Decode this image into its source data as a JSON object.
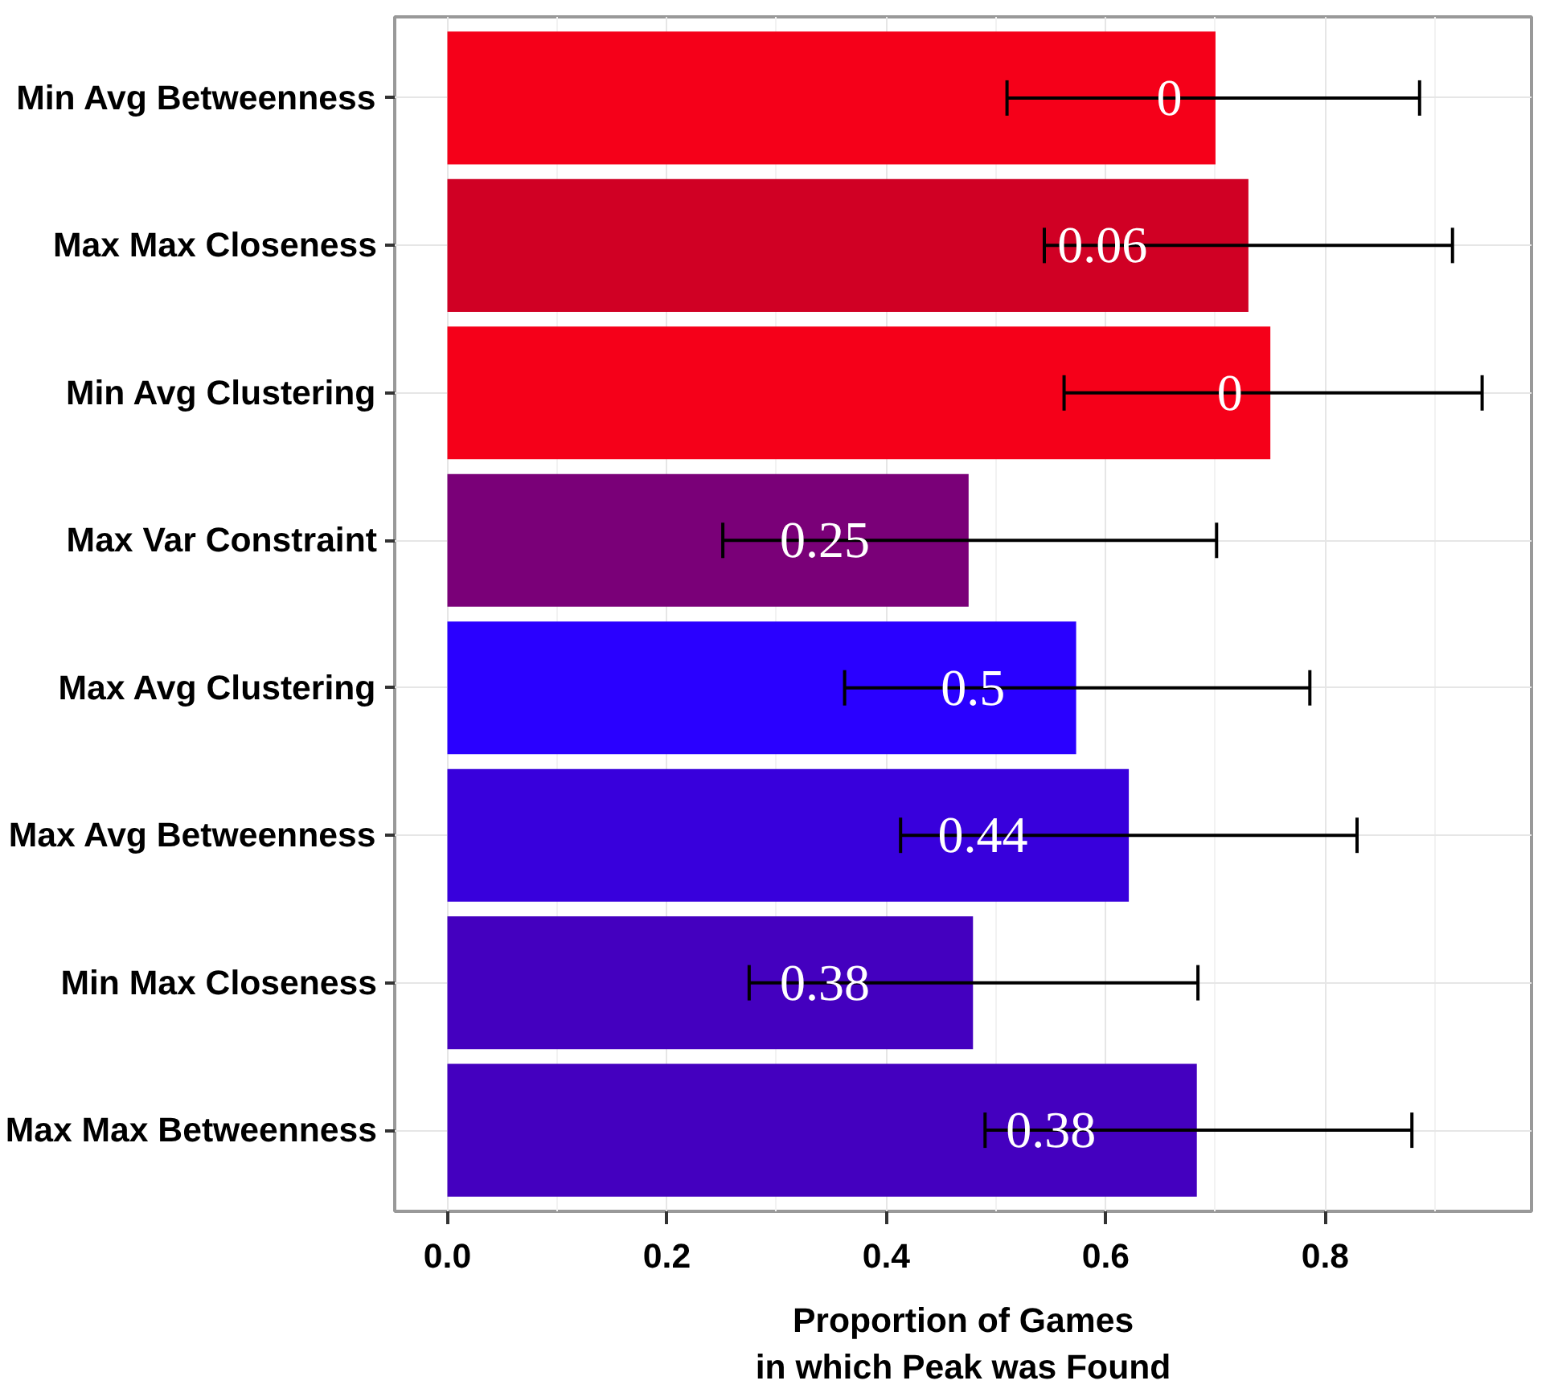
{
  "chart_data": {
    "type": "bar",
    "orientation": "horizontal",
    "xlabel": "Proportion of Games\nin which Peak was Found",
    "categories": [
      "Min Avg Betweenness",
      "Max Max Closeness",
      "Min Avg Clustering",
      "Max Var Constraint",
      "Max Avg Clustering",
      "Max Avg Betweenness",
      "Min Max Closeness",
      "Max Max Betweenness"
    ],
    "values": [
      0.7,
      0.73,
      0.75,
      0.475,
      0.573,
      0.621,
      0.479,
      0.683
    ],
    "colors": [
      "#f50019",
      "#d00024",
      "#f50019",
      "#7a0078",
      "#2a00ff",
      "#3800dc",
      "#4400bf",
      "#4400bf"
    ],
    "errors": [
      [
        0.51,
        0.886
      ],
      [
        0.544,
        0.916
      ],
      [
        0.562,
        0.943
      ],
      [
        0.251,
        0.701
      ],
      [
        0.362,
        0.786
      ],
      [
        0.413,
        0.829
      ],
      [
        0.275,
        0.684
      ],
      [
        0.49,
        0.879
      ]
    ],
    "annotations": [
      {
        "text": "0",
        "x": 0.658,
        "y": "Min Avg Betweenness"
      },
      {
        "text": "0.06",
        "x": 0.597,
        "y": "Max Max Closeness"
      },
      {
        "text": "0",
        "x": 0.713,
        "y": "Min Avg Clustering"
      },
      {
        "text": "0.25",
        "x": 0.344,
        "y": "Max Var Constraint"
      },
      {
        "text": "0.5",
        "x": 0.479,
        "y": "Max Avg Clustering"
      },
      {
        "text": "0.44",
        "x": 0.488,
        "y": "Max Avg Betweenness"
      },
      {
        "text": "0.38",
        "x": 0.344,
        "y": "Min Max Closeness"
      },
      {
        "text": "0.38",
        "x": 0.55,
        "y": "Max Max Betweenness"
      }
    ],
    "xlim": [
      -0.048,
      0.988
    ],
    "xticks": [
      {
        "value": 0,
        "label": "0.0"
      },
      0.2,
      0.4,
      0.6,
      0.8
    ],
    "grid": true
  }
}
